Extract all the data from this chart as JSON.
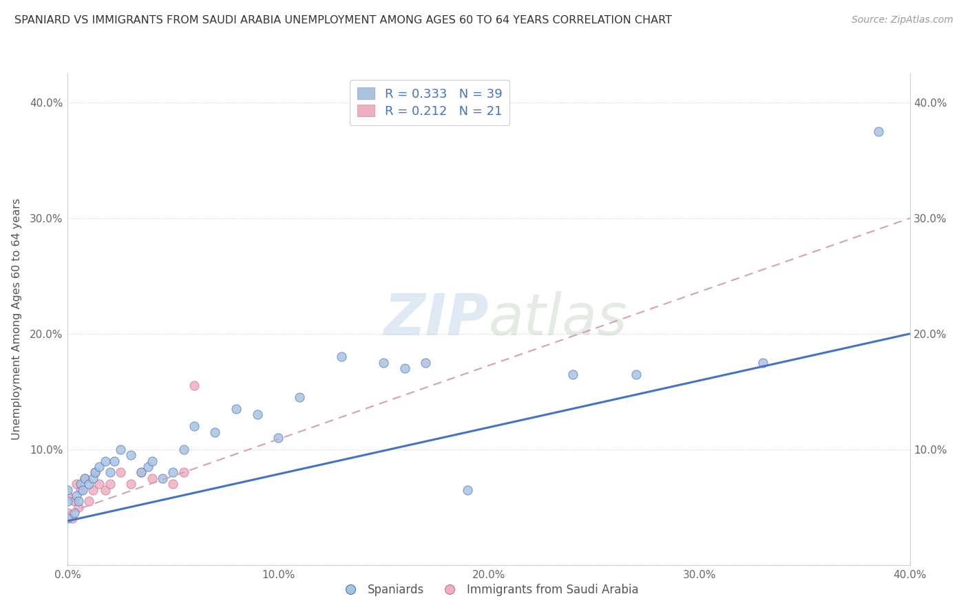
{
  "title": "SPANIARD VS IMMIGRANTS FROM SAUDI ARABIA UNEMPLOYMENT AMONG AGES 60 TO 64 YEARS CORRELATION CHART",
  "source": "Source: ZipAtlas.com",
  "ylabel": "Unemployment Among Ages 60 to 64 years",
  "xlim": [
    0.0,
    0.4
  ],
  "ylim": [
    0.0,
    0.425
  ],
  "xticks": [
    0.0,
    0.1,
    0.2,
    0.3,
    0.4
  ],
  "xtick_labels": [
    "0.0%",
    "10.0%",
    "20.0%",
    "30.0%",
    "40.0%"
  ],
  "yticks": [
    0.0,
    0.1,
    0.2,
    0.3,
    0.4
  ],
  "ytick_labels": [
    "",
    "10.0%",
    "20.0%",
    "30.0%",
    "40.0%"
  ],
  "right_ytick_labels": [
    "",
    "10.0%",
    "20.0%",
    "30.0%",
    "40.0%"
  ],
  "legend_R1": "0.333",
  "legend_N1": "39",
  "legend_R2": "0.212",
  "legend_N2": "21",
  "spaniards_color": "#a8c4e0",
  "saudi_color": "#f0b0c0",
  "line_blue": "#4472c4",
  "line_pink_dashed": "#d4a0b8",
  "watermark_zip": "ZIP",
  "watermark_atlas": "atlas",
  "spaniards_x": [
    0.0,
    0.0,
    0.0,
    0.003,
    0.004,
    0.005,
    0.006,
    0.007,
    0.008,
    0.01,
    0.012,
    0.013,
    0.015,
    0.018,
    0.02,
    0.022,
    0.025,
    0.03,
    0.035,
    0.038,
    0.04,
    0.045,
    0.05,
    0.055,
    0.06,
    0.07,
    0.08,
    0.09,
    0.1,
    0.11,
    0.13,
    0.15,
    0.16,
    0.17,
    0.19,
    0.24,
    0.27,
    0.33,
    0.385
  ],
  "spaniards_y": [
    0.04,
    0.055,
    0.065,
    0.045,
    0.06,
    0.055,
    0.07,
    0.065,
    0.075,
    0.07,
    0.075,
    0.08,
    0.085,
    0.09,
    0.08,
    0.09,
    0.1,
    0.095,
    0.08,
    0.085,
    0.09,
    0.075,
    0.08,
    0.1,
    0.12,
    0.115,
    0.135,
    0.13,
    0.11,
    0.145,
    0.18,
    0.175,
    0.17,
    0.175,
    0.065,
    0.165,
    0.165,
    0.175,
    0.375
  ],
  "saudi_x": [
    0.0,
    0.0,
    0.002,
    0.003,
    0.004,
    0.005,
    0.006,
    0.008,
    0.01,
    0.012,
    0.013,
    0.015,
    0.018,
    0.02,
    0.025,
    0.03,
    0.035,
    0.04,
    0.05,
    0.055,
    0.06
  ],
  "saudi_y": [
    0.045,
    0.06,
    0.04,
    0.055,
    0.07,
    0.05,
    0.065,
    0.075,
    0.055,
    0.065,
    0.08,
    0.07,
    0.065,
    0.07,
    0.08,
    0.07,
    0.08,
    0.075,
    0.07,
    0.08,
    0.155
  ],
  "blue_line_x0": 0.0,
  "blue_line_y0": 0.038,
  "blue_line_x1": 0.4,
  "blue_line_y1": 0.2,
  "pink_line_x0": 0.0,
  "pink_line_y0": 0.045,
  "pink_line_x1": 0.4,
  "pink_line_y1": 0.3
}
